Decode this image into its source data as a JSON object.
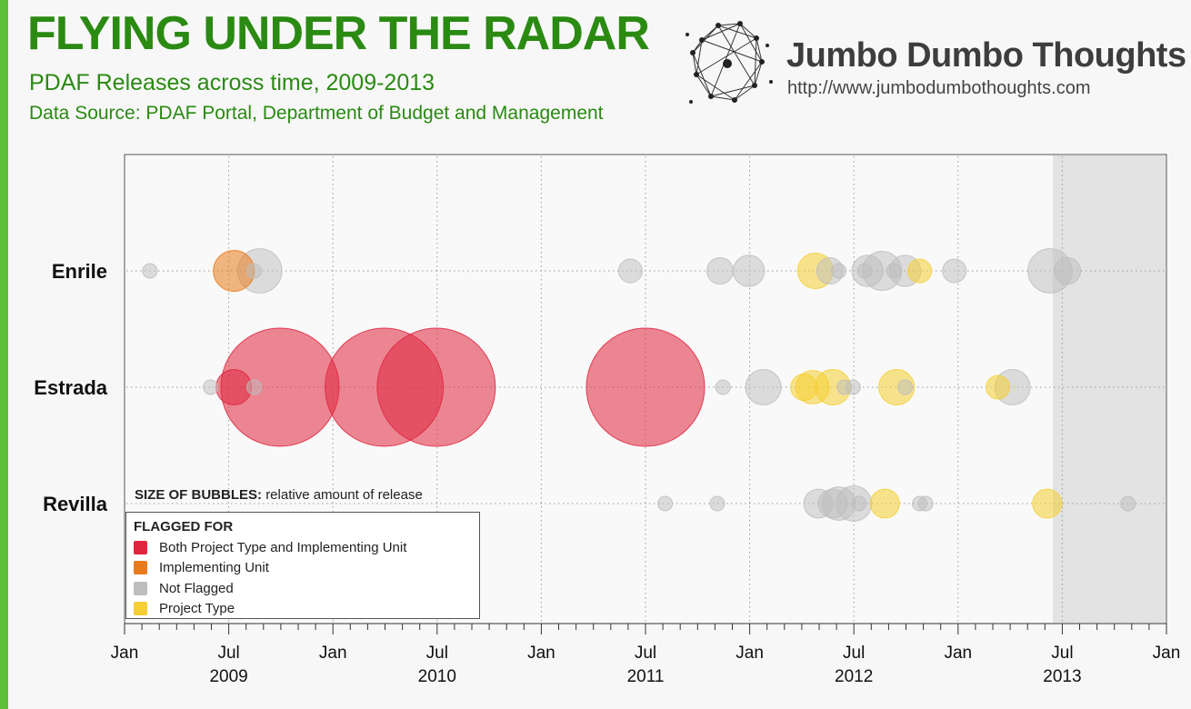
{
  "header": {
    "title": "FLYING UNDER THE RADAR",
    "subtitle": "PDAF Releases across time, 2009-2013",
    "source": "Data Source: PDAF Portal, Department of Budget and Management"
  },
  "brand": {
    "name": "Jumbo Dumbo Thoughts",
    "url": "http://www.jumbodumbothoughts.com",
    "logo_icon": "network-nodes-icon"
  },
  "colors": {
    "title_green": "#2a8a12",
    "accent_green": "#5cbf3a",
    "both": "#e0263e",
    "implementing": "#e97b1c",
    "not_flagged": "#bdbdbd",
    "project_type": "#f5cf33",
    "shaded_period": "#e3e3e3"
  },
  "bubble_note": {
    "label": "SIZE OF BUBBLES:",
    "text": "relative amount of release"
  },
  "legend": {
    "title": "FLAGGED FOR",
    "items": [
      {
        "key": "both",
        "label": "Both Project Type and Implementing Unit"
      },
      {
        "key": "implementing",
        "label": "Implementing Unit"
      },
      {
        "key": "not_flagged",
        "label": "Not Flagged"
      },
      {
        "key": "project_type",
        "label": "Project Type"
      }
    ]
  },
  "chart_data": {
    "type": "scatter",
    "title": "FLYING UNDER THE RADAR",
    "x_axis": {
      "range": [
        "2009-01",
        "2014-01"
      ],
      "ticks": [
        {
          "month": "Jan",
          "year": ""
        },
        {
          "month": "Jul",
          "year": "2009"
        },
        {
          "month": "Jan",
          "year": ""
        },
        {
          "month": "Jul",
          "year": "2010"
        },
        {
          "month": "Jan",
          "year": ""
        },
        {
          "month": "Jul",
          "year": "2011"
        },
        {
          "month": "Jan",
          "year": ""
        },
        {
          "month": "Jul",
          "year": "2012"
        },
        {
          "month": "Jan",
          "year": ""
        },
        {
          "month": "Jul",
          "year": "2013"
        },
        {
          "month": "Jan",
          "year": ""
        }
      ]
    },
    "shaded_period": {
      "from": "2013-06-15",
      "to": "2014-01"
    },
    "grid": true,
    "size_encoding": "relative amount of release",
    "rows": [
      {
        "name": "Enrile",
        "bubbles": [
          {
            "date": "2009-02-15",
            "size": 1,
            "flag": "not_flagged"
          },
          {
            "date": "2009-07-10",
            "size": 12,
            "flag": "implementing"
          },
          {
            "date": "2009-08-25",
            "size": 14,
            "flag": "not_flagged"
          },
          {
            "date": "2009-08-15",
            "size": 1,
            "flag": "not_flagged"
          },
          {
            "date": "2011-06-05",
            "size": 4,
            "flag": "not_flagged"
          },
          {
            "date": "2011-11-10",
            "size": 5,
            "flag": "not_flagged"
          },
          {
            "date": "2011-12-30",
            "size": 7,
            "flag": "not_flagged"
          },
          {
            "date": "2012-04-25",
            "size": 9,
            "flag": "project_type"
          },
          {
            "date": "2012-05-20",
            "size": 5,
            "flag": "not_flagged"
          },
          {
            "date": "2012-06-05",
            "size": 1,
            "flag": "not_flagged"
          },
          {
            "date": "2012-07-25",
            "size": 7,
            "flag": "not_flagged"
          },
          {
            "date": "2012-07-20",
            "size": 1,
            "flag": "not_flagged"
          },
          {
            "date": "2012-08-20",
            "size": 11,
            "flag": "not_flagged"
          },
          {
            "date": "2012-09-10",
            "size": 1,
            "flag": "not_flagged"
          },
          {
            "date": "2012-09-30",
            "size": 7,
            "flag": "not_flagged"
          },
          {
            "date": "2012-10-25",
            "size": 4,
            "flag": "project_type"
          },
          {
            "date": "2012-12-25",
            "size": 4,
            "flag": "not_flagged"
          },
          {
            "date": "2013-06-10",
            "size": 14,
            "flag": "not_flagged"
          },
          {
            "date": "2013-07-10",
            "size": 5,
            "flag": "not_flagged"
          }
        ]
      },
      {
        "name": "Estrada",
        "bubbles": [
          {
            "date": "2009-05-30",
            "size": 1,
            "flag": "not_flagged"
          },
          {
            "date": "2009-07-10",
            "size": 9,
            "flag": "both"
          },
          {
            "date": "2009-08-15",
            "size": 1,
            "flag": "not_flagged"
          },
          {
            "date": "2009-09-30",
            "size": 100,
            "flag": "both"
          },
          {
            "date": "2010-03-30",
            "size": 100,
            "flag": "both"
          },
          {
            "date": "2010-06-30",
            "size": 100,
            "flag": "both"
          },
          {
            "date": "2011-07-01",
            "size": 100,
            "flag": "both"
          },
          {
            "date": "2011-11-15",
            "size": 1,
            "flag": "not_flagged"
          },
          {
            "date": "2012-01-25",
            "size": 9,
            "flag": "not_flagged"
          },
          {
            "date": "2012-04-05",
            "size": 5,
            "flag": "project_type"
          },
          {
            "date": "2012-04-20",
            "size": 8,
            "flag": "project_type"
          },
          {
            "date": "2012-05-25",
            "size": 9,
            "flag": "project_type"
          },
          {
            "date": "2012-06-15",
            "size": 1,
            "flag": "not_flagged"
          },
          {
            "date": "2012-06-30",
            "size": 1,
            "flag": "not_flagged"
          },
          {
            "date": "2012-09-15",
            "size": 9,
            "flag": "project_type"
          },
          {
            "date": "2012-09-30",
            "size": 1,
            "flag": "not_flagged"
          },
          {
            "date": "2013-03-10",
            "size": 4,
            "flag": "project_type"
          },
          {
            "date": "2013-04-05",
            "size": 9,
            "flag": "not_flagged"
          }
        ]
      },
      {
        "name": "Revilla",
        "bubbles": [
          {
            "date": "2011-08-05",
            "size": 1,
            "flag": "not_flagged"
          },
          {
            "date": "2011-11-05",
            "size": 1,
            "flag": "not_flagged"
          },
          {
            "date": "2012-04-30",
            "size": 6,
            "flag": "not_flagged"
          },
          {
            "date": "2012-05-25",
            "size": 6,
            "flag": "not_flagged"
          },
          {
            "date": "2012-06-05",
            "size": 8,
            "flag": "not_flagged"
          },
          {
            "date": "2012-07-01",
            "size": 9,
            "flag": "not_flagged"
          },
          {
            "date": "2012-07-10",
            "size": 1,
            "flag": "not_flagged"
          },
          {
            "date": "2012-08-25",
            "size": 6,
            "flag": "project_type"
          },
          {
            "date": "2012-10-25",
            "size": 1,
            "flag": "not_flagged"
          },
          {
            "date": "2012-11-05",
            "size": 1,
            "flag": "not_flagged"
          },
          {
            "date": "2013-06-05",
            "size": 6,
            "flag": "project_type"
          },
          {
            "date": "2013-10-25",
            "size": 1,
            "flag": "not_flagged"
          }
        ]
      }
    ]
  }
}
